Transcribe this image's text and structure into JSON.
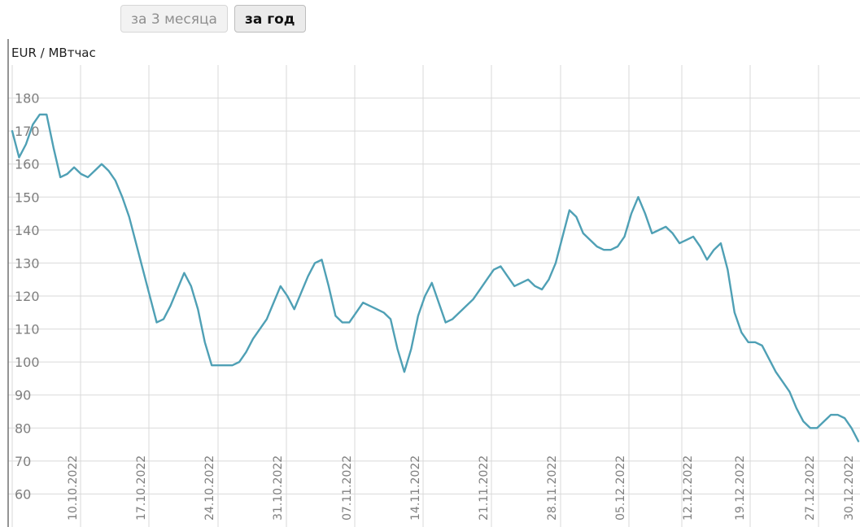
{
  "controls": {
    "period_3_months": "за 3 месяца",
    "period_year": "за год",
    "active": "period_year"
  },
  "colors": {
    "line": "#4fa0b5",
    "grid": "#d9d9d9",
    "axis": "#666666",
    "tick_text": "#7f7f7f"
  },
  "chart_data": {
    "type": "line",
    "title": "",
    "xlabel": "",
    "ylabel": "EUR / МВтчас",
    "grid": true,
    "ylim": [
      50,
      190
    ],
    "y_ticks": [
      60,
      70,
      80,
      90,
      100,
      110,
      120,
      130,
      140,
      150,
      160,
      170,
      180
    ],
    "x_tick_labels": [
      "10.10.2022",
      "17.10.2022",
      "24.10.2022",
      "31.10.2022",
      "07.11.2022",
      "14.11.2022",
      "21.11.2022",
      "28.11.2022",
      "05.12.2022",
      "12.12.2022",
      "19.12.2022",
      "27.12.2022",
      "30.12.2022"
    ],
    "series": [
      {
        "values": [
          170,
          162,
          166,
          172,
          175,
          175,
          165,
          156,
          157,
          159,
          157,
          156,
          158,
          160,
          158,
          155,
          150,
          144,
          136,
          128,
          120,
          112,
          113,
          117,
          122,
          127,
          123,
          116,
          106,
          99,
          99,
          99,
          99,
          100,
          103,
          107,
          110,
          113,
          118,
          123,
          120,
          116,
          121,
          126,
          130,
          131,
          123,
          114,
          112,
          112,
          115,
          118,
          117,
          116,
          115,
          113,
          104,
          97,
          104,
          114,
          120,
          124,
          118,
          112,
          113,
          115,
          117,
          119,
          122,
          125,
          128,
          129,
          126,
          123,
          124,
          125,
          123,
          122,
          125,
          130,
          138,
          146,
          144,
          139,
          137,
          135,
          134,
          134,
          135,
          138,
          145,
          150,
          145,
          139,
          140,
          141,
          139,
          136,
          137,
          138,
          135,
          131,
          134,
          136,
          128,
          115,
          109,
          106,
          106,
          105,
          101,
          97,
          94,
          91,
          86,
          82,
          80,
          80,
          82,
          84,
          84,
          83,
          80,
          76
        ]
      }
    ]
  }
}
